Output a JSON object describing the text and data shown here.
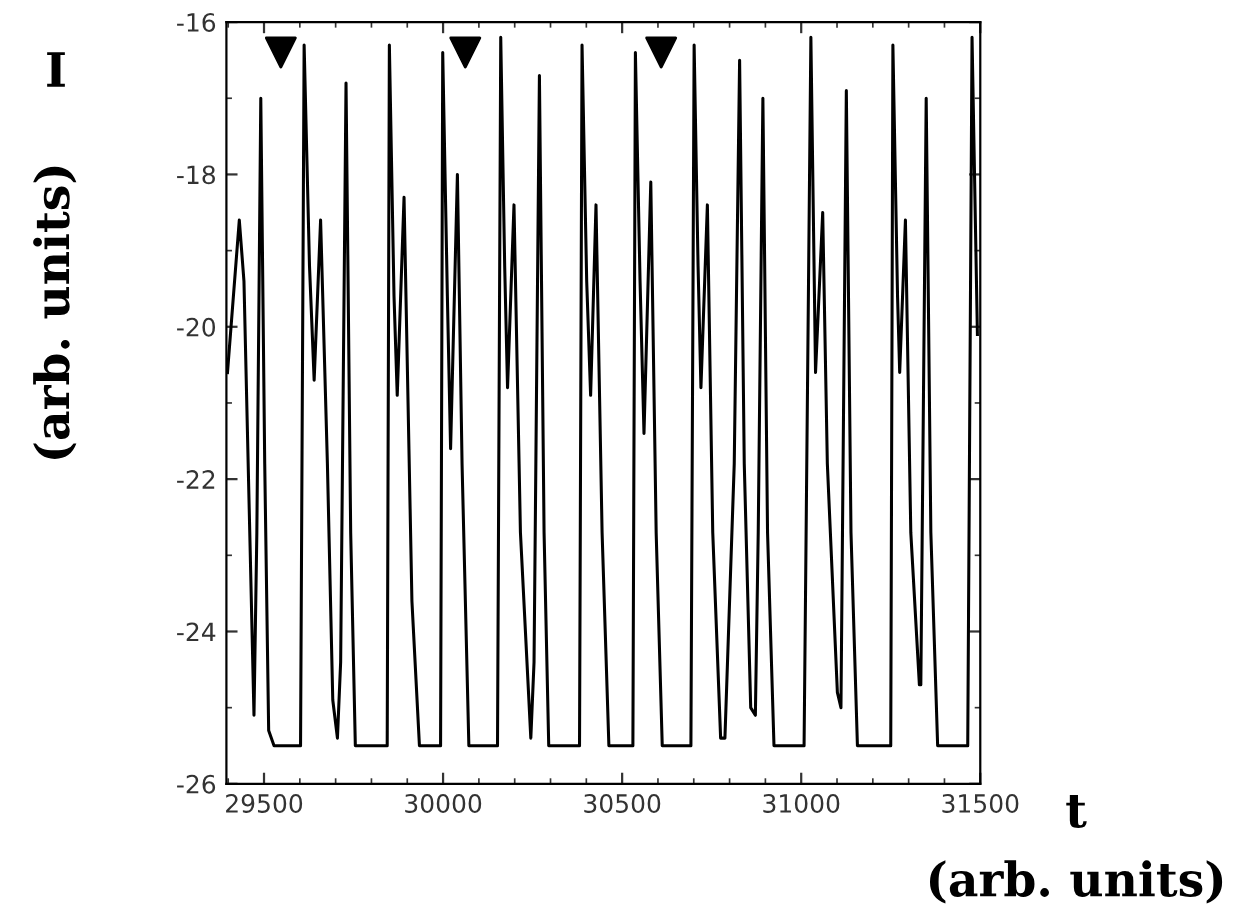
{
  "chart_data": {
    "type": "line",
    "xlabel": "t (arb. units)",
    "ylabel": "I (arb. units)",
    "xlim": [
      29395,
      31500
    ],
    "ylim": [
      -26,
      -16
    ],
    "xticks": [
      {
        "value": 29400,
        "label": null
      },
      29500,
      {
        "value": 29600,
        "label": null
      },
      {
        "value": 29700,
        "label": null
      },
      {
        "value": 29800,
        "label": null
      },
      {
        "value": 29900,
        "label": null
      },
      30000,
      {
        "value": 30100,
        "label": null
      },
      {
        "value": 30200,
        "label": null
      },
      {
        "value": 30300,
        "label": null
      },
      {
        "value": 30400,
        "label": null
      },
      30500,
      {
        "value": 30600,
        "label": null
      },
      {
        "value": 30700,
        "label": null
      },
      {
        "value": 30800,
        "label": null
      },
      {
        "value": 30900,
        "label": null
      },
      31000,
      {
        "value": 31100,
        "label": null
      },
      {
        "value": 31200,
        "label": null
      },
      {
        "value": 31300,
        "label": null
      },
      {
        "value": 31400,
        "label": null
      },
      31500
    ],
    "yticks": [
      -26,
      {
        "value": -25,
        "label": null
      },
      -24,
      {
        "value": -23,
        "label": null
      },
      -22,
      {
        "value": -21,
        "label": null
      },
      -20,
      {
        "value": -19,
        "label": null
      },
      -18,
      {
        "value": -17,
        "label": null
      },
      -16
    ],
    "grid": false,
    "legend": false,
    "series": [
      {
        "color": "#000000",
        "x": [
          29398,
          29431,
          29444,
          29472,
          29480,
          29491,
          29502,
          29513,
          29528,
          29602,
          29612,
          29627,
          29640,
          29658,
          29677,
          29692,
          29705,
          29714,
          29729,
          29742,
          29755,
          29844,
          29850,
          29863,
          29872,
          29891,
          29913,
          29934,
          29993,
          29999,
          30012,
          30021,
          30040,
          30053,
          30072,
          30152,
          30161,
          30172,
          30180,
          30198,
          30216,
          30245,
          30254,
          30269,
          30282,
          30295,
          30381,
          30388,
          30401,
          30412,
          30427,
          30444,
          30463,
          30530,
          30537,
          30550,
          30561,
          30580,
          30595,
          30612,
          30692,
          30701,
          30712,
          30720,
          30738,
          30753,
          30775,
          30787,
          30813,
          30828,
          30841,
          30859,
          30872,
          30880,
          30893,
          30906,
          30924,
          31008,
          31027,
          31040,
          31060,
          31073,
          31101,
          31111,
          31126,
          31139,
          31157,
          31250,
          31256,
          31269,
          31275,
          31291,
          31306,
          31330,
          31334,
          31349,
          31362,
          31381,
          31465,
          31477,
          31492
        ],
        "values": [
          -20.6,
          -18.6,
          -19.4,
          -25.1,
          -22.7,
          -17.0,
          -21.8,
          -25.3,
          -25.5,
          -25.5,
          -16.3,
          -19.2,
          -20.7,
          -18.6,
          -21.8,
          -24.9,
          -25.4,
          -24.4,
          -16.8,
          -22.7,
          -25.5,
          -25.5,
          -16.3,
          -19.6,
          -20.9,
          -18.3,
          -23.6,
          -25.5,
          -25.5,
          -16.4,
          -19.6,
          -21.6,
          -18.0,
          -21.8,
          -25.5,
          -25.5,
          -16.2,
          -19.2,
          -20.8,
          -18.4,
          -22.7,
          -25.4,
          -24.4,
          -16.7,
          -22.7,
          -25.5,
          -25.5,
          -16.3,
          -19.4,
          -20.9,
          -18.4,
          -22.7,
          -25.5,
          -25.5,
          -16.4,
          -19.4,
          -21.4,
          -18.1,
          -22.7,
          -25.5,
          -25.5,
          -16.3,
          -19.2,
          -20.8,
          -18.4,
          -22.7,
          -25.4,
          -25.4,
          -21.8,
          -16.5,
          -21.8,
          -25.0,
          -25.1,
          -22.7,
          -17.0,
          -22.7,
          -25.5,
          -25.5,
          -16.2,
          -20.6,
          -18.5,
          -21.8,
          -24.8,
          -25.0,
          -16.9,
          -22.7,
          -25.5,
          -25.5,
          -16.3,
          -19.6,
          -20.6,
          -18.6,
          -22.7,
          -24.7,
          -24.7,
          -17.0,
          -22.7,
          -25.5,
          -25.5,
          -16.2,
          -20.1
        ]
      },
      {
        "color": "#000000",
        "type": "scatter",
        "marker": "triangle",
        "x": [
          29547,
          30062,
          30609
        ],
        "values": [
          -16.4,
          -16.4,
          -16.4
        ]
      }
    ]
  }
}
